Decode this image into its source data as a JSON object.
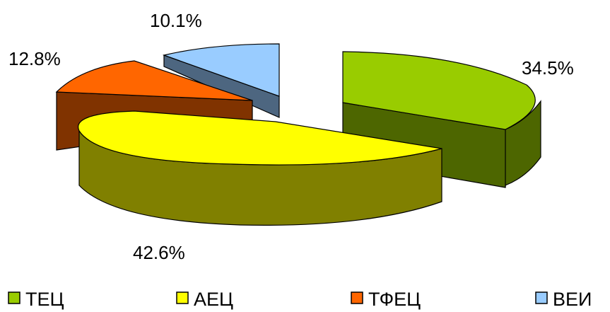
{
  "chart_data": {
    "type": "pie",
    "variant": "3d-exploded",
    "title": "",
    "legend_position": "bottom",
    "slices": [
      {
        "name": "ТЕЦ",
        "value": 34.5,
        "label": "34.5%",
        "top_color": "#99CC00",
        "side_color": "#4D6600"
      },
      {
        "name": "АЕЦ",
        "value": 42.6,
        "label": "42.6%",
        "top_color": "#FFFF00",
        "side_color": "#808000"
      },
      {
        "name": "ТФЕЦ",
        "value": 12.8,
        "label": "12.8%",
        "top_color": "#FF6600",
        "side_color": "#803300"
      },
      {
        "name": "ВЕИ",
        "value": 10.1,
        "label": "10.1%",
        "top_color": "#99CCFF",
        "side_color": "#4D6680"
      }
    ]
  }
}
